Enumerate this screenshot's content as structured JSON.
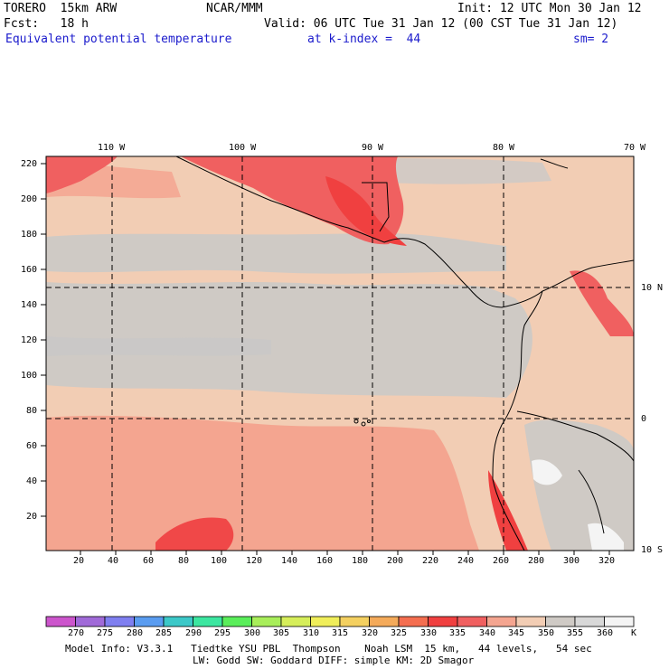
{
  "header": {
    "model": "TORERO  15km ARW",
    "center": "NCAR/MMM",
    "init": "Init: 12 UTC Mon 30 Jan 12",
    "fcst": "Fcst:   18 h",
    "valid": "Valid: 06 UTC Tue 31 Jan 12 (00 CST Tue 31 Jan 12)",
    "field": "Equivalent potential temperature",
    "level": "at k-index =  44",
    "smoothing": "sm= 2"
  },
  "map": {
    "lon_labels": [
      "110 W",
      "100 W",
      "90 W",
      "80 W",
      "70 W"
    ],
    "lat_labels": [
      "10 N",
      "0",
      "10 S"
    ],
    "y_ticks": [
      "220",
      "200",
      "180",
      "160",
      "140",
      "120",
      "100",
      "80",
      "60",
      "40",
      "20"
    ],
    "x_ticks": [
      "20",
      "40",
      "60",
      "80",
      "100",
      "120",
      "140",
      "160",
      "180",
      "200",
      "220",
      "240",
      "260",
      "280",
      "300",
      "320"
    ]
  },
  "colorbar": {
    "unit": "K",
    "labels": [
      "270",
      "275",
      "280",
      "285",
      "290",
      "295",
      "300",
      "305",
      "310",
      "315",
      "320",
      "325",
      "330",
      "335",
      "340",
      "345",
      "350",
      "355",
      "360"
    ],
    "colors": [
      "#cc55cc",
      "#a06ad8",
      "#7f7ff0",
      "#5a9cf0",
      "#3cc8c8",
      "#3ce6a0",
      "#5aee5a",
      "#a8ee5a",
      "#d6ee5a",
      "#f0ee5a",
      "#f4d060",
      "#f4aa5a",
      "#f46e50",
      "#f04040",
      "#f06060",
      "#f4a590",
      "#f2cdb4",
      "#cfcac5",
      "#d8d8d8",
      "#f4f4f4"
    ]
  },
  "footer": {
    "line1": "Model Info: V3.3.1   Tiedtke YSU PBL  Thompson    Noah LSM  15 km,   44 levels,   54 sec",
    "line2": "LW: Godd SW: Goddard DIFF: simple KM: 2D Smagor"
  }
}
